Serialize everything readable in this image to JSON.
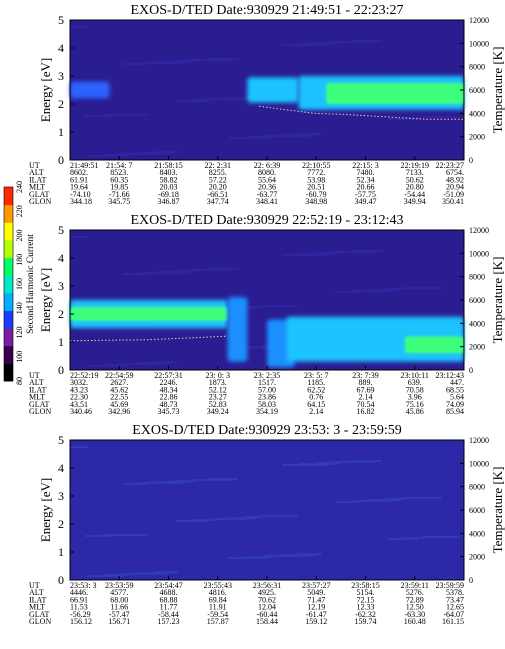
{
  "chart_data": [
    {
      "type": "heatmap",
      "title": "EXOS-D/TED   Date:930929  21:49:51 - 22:23:27",
      "ylabel": "Energy [eV]",
      "y2label": "Temperature [K]",
      "ylim": [
        0,
        5
      ],
      "y2lim": [
        0,
        12000
      ],
      "yticks": [
        "0",
        "1",
        "2",
        "3",
        "4",
        "5"
      ],
      "y2ticks": [
        "0",
        "2000",
        "4000",
        "6000",
        "8000",
        "10000",
        "12000"
      ],
      "background": "#2a1d92",
      "bands": [
        {
          "t0": 0.0,
          "t1": 0.1,
          "e0": 2.2,
          "e1": 2.8,
          "level": "low"
        },
        {
          "t0": 0.45,
          "t1": 0.58,
          "e0": 2.05,
          "e1": 2.95,
          "level": "high"
        },
        {
          "t0": 0.58,
          "t1": 1.0,
          "e0": 1.8,
          "e1": 3.0,
          "level": "high"
        },
        {
          "t0": 0.65,
          "t1": 1.0,
          "e0": 2.0,
          "e1": 2.75,
          "level": "peak"
        }
      ],
      "temperature_trace": [
        [
          0.48,
          4600
        ],
        [
          0.55,
          4300
        ],
        [
          0.62,
          4000
        ],
        [
          0.7,
          3900
        ],
        [
          0.8,
          3700
        ],
        [
          0.9,
          3500
        ],
        [
          1.0,
          3500
        ]
      ],
      "orbit": {
        "labels": [
          "UT",
          "ALT",
          "ILAT",
          "MLT",
          "GLAT",
          "GLON"
        ],
        "columns": [
          [
            "21:49:51",
            "8602.",
            "61.91",
            "19.64",
            "-74.10",
            "344.18"
          ],
          [
            "21:54: 7",
            "8523.",
            "60.35",
            "19.85",
            "-71.66",
            "345.75"
          ],
          [
            "21:58:15",
            "8403.",
            "58.82",
            "20.03",
            "-69.18",
            "346.87"
          ],
          [
            "22: 2:31",
            "8255.",
            "57.22",
            "20.20",
            "-66.51",
            "347.74"
          ],
          [
            "22: 6:39",
            "8080.",
            "55.64",
            "20.36",
            "-63.77",
            "348.41"
          ],
          [
            "22:10:55",
            "7772.",
            "53.98",
            "20.51",
            "-60.79",
            "348.98"
          ],
          [
            "22:15: 3",
            "7480.",
            "52.34",
            "20.66",
            "-57.75",
            "349.47"
          ],
          [
            "22:19:19",
            "7133.",
            "50.62",
            "20.80",
            "-54.44",
            "349.94"
          ],
          [
            "22:23:27",
            "6754.",
            "48.92",
            "20.94",
            "-51.09",
            "350.41"
          ]
        ]
      }
    },
    {
      "type": "heatmap",
      "title": "EXOS-D/TED   Date:930929  22:52:19 - 23:12:43",
      "ylabel": "Energy [eV]",
      "y2label": "Temperature [K]",
      "ylim": [
        0,
        5
      ],
      "y2lim": [
        0,
        12000
      ],
      "yticks": [
        "0",
        "1",
        "2",
        "3",
        "4",
        "5"
      ],
      "y2ticks": [
        "0",
        "2000",
        "4000",
        "6000",
        "8000",
        "10000",
        "12000"
      ],
      "background": "#2a1d92",
      "bands": [
        {
          "t0": 0.0,
          "t1": 0.4,
          "e0": 1.5,
          "e1": 2.5,
          "level": "high"
        },
        {
          "t0": 0.0,
          "t1": 0.4,
          "e0": 1.75,
          "e1": 2.25,
          "level": "peak"
        },
        {
          "t0": 0.4,
          "t1": 0.45,
          "e0": 0.3,
          "e1": 2.6,
          "level": "mid"
        },
        {
          "t0": 0.5,
          "t1": 0.57,
          "e0": 0.1,
          "e1": 1.8,
          "level": "mid"
        },
        {
          "t0": 0.55,
          "t1": 1.0,
          "e0": 0.3,
          "e1": 1.9,
          "level": "high"
        },
        {
          "t0": 0.85,
          "t1": 1.0,
          "e0": 0.6,
          "e1": 1.2,
          "level": "peak"
        }
      ],
      "temperature_trace": [
        [
          0.0,
          2500
        ],
        [
          0.2,
          2600
        ],
        [
          0.4,
          2900
        ]
      ],
      "colorbar": {
        "label": "Second Harmonic Current",
        "ticks": [
          "80",
          "100",
          "120",
          "140",
          "160",
          "180",
          "200",
          "220",
          "240"
        ],
        "colors": [
          "#000000",
          "#3a0050",
          "#7b1fa2",
          "#1e3cff",
          "#00b0ff",
          "#00e6c8",
          "#00ff66",
          "#b6ff00",
          "#ffff00",
          "#ff9900",
          "#ff2a00"
        ]
      },
      "orbit": {
        "labels": [
          "UT",
          "ALT",
          "ILAT",
          "MLT",
          "GLAT",
          "GLON"
        ],
        "columns": [
          [
            "22:52:19",
            "3032.",
            "43.23",
            "22.30",
            "43.51",
            "340.46"
          ],
          [
            "22:54:59",
            "2627.",
            "45.62",
            "22.55",
            "45.69",
            "342.96"
          ],
          [
            "22:57:31",
            "2246.",
            "48.34",
            "22.86",
            "48.73",
            "345.73"
          ],
          [
            "23: 0: 3",
            "1873.",
            "52.12",
            "23.27",
            "52.83",
            "349.24"
          ],
          [
            "23: 2:35",
            "1517.",
            "57.00",
            "23.86",
            "58.03",
            "354.19"
          ],
          [
            "23: 5: 7",
            "1185.",
            "62.52",
            "0.76",
            "64.15",
            "2.14"
          ],
          [
            "23: 7:39",
            "889.",
            "67.69",
            "2.14",
            "70.54",
            "16.82"
          ],
          [
            "23:10:11",
            "639.",
            "70.58",
            "3.96",
            "75.16",
            "45.86"
          ],
          [
            "23:12:43",
            "447.",
            "68.55",
            "5.64",
            "74.09",
            "85.94"
          ]
        ]
      }
    },
    {
      "type": "heatmap",
      "title": "EXOS-D/TED   Date:930929  23:53: 3 - 23:59:59",
      "ylabel": "Energy [eV]",
      "y2label": "Temperature [K]",
      "ylim": [
        0,
        5
      ],
      "y2lim": [
        0,
        12000
      ],
      "yticks": [
        "0",
        "1",
        "2",
        "3",
        "4",
        "5"
      ],
      "y2ticks": [
        "0",
        "2000",
        "4000",
        "6000",
        "8000",
        "10000",
        "12000"
      ],
      "background": "#2c28a8",
      "bands": [],
      "orbit": {
        "labels": [
          "UT",
          "ALT",
          "ILAT",
          "MLT",
          "GLAT",
          "GLON"
        ],
        "columns": [
          [
            "23:53: 3",
            "4446.",
            "66.91",
            "11.53",
            "-56.29",
            "156.12"
          ],
          [
            "23:53:59",
            "4577.",
            "68.00",
            "11.66",
            "-57.47",
            "156.71"
          ],
          [
            "23:54:47",
            "4688.",
            "68.88",
            "11.77",
            "-58.44",
            "157.23"
          ],
          [
            "23:55:43",
            "4816.",
            "69.84",
            "11.91",
            "-59.54",
            "157.87"
          ],
          [
            "23:56:31",
            "4925.",
            "70.62",
            "12.04",
            "-60.44",
            "158.44"
          ],
          [
            "23:57:27",
            "5049.",
            "71.47",
            "12.19",
            "-61.47",
            "159.12"
          ],
          [
            "23:58:15",
            "5154.",
            "72.15",
            "12.33",
            "-62.32",
            "159.74"
          ],
          [
            "23:59:11",
            "5276.",
            "72.89",
            "12.50",
            "-63.30",
            "160.48"
          ],
          [
            "23:59:59",
            "5378.",
            "73.47",
            "12.65",
            "-64.07",
            "161.15"
          ]
        ]
      }
    }
  ]
}
